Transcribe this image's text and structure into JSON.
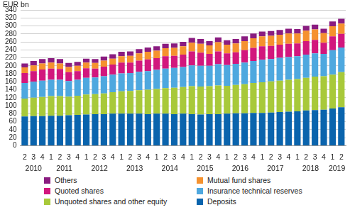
{
  "chart_data": {
    "type": "bar",
    "stacked": true,
    "grid": true,
    "legend": "bottom",
    "y_label": "EUR bn",
    "categories": [
      "2",
      "3",
      "4",
      "1",
      "2",
      "3",
      "4",
      "1",
      "2",
      "3",
      "4",
      "1",
      "2",
      "3",
      "4",
      "1",
      "2",
      "3",
      "4",
      "1",
      "2",
      "3",
      "4",
      "1",
      "2",
      "3",
      "4",
      "1",
      "2",
      "3",
      "4",
      "1",
      "2",
      "3",
      "4",
      "1",
      "2"
    ],
    "years": [
      "2010",
      "2011",
      "2012",
      "2013",
      "2014",
      "2015",
      "2016",
      "2017",
      "2018",
      "2019"
    ],
    "ylim": [
      0,
      340
    ],
    "yticks": [
      0,
      20,
      40,
      60,
      80,
      100,
      120,
      140,
      160,
      180,
      200,
      220,
      240,
      260,
      280,
      300,
      320,
      340
    ],
    "series": [
      {
        "name": "Deposits",
        "color": "#0a64ad",
        "values": [
          73,
          74,
          74,
          75,
          75,
          76,
          77,
          78,
          79,
          79,
          80,
          80,
          80,
          80,
          79,
          80,
          80,
          79,
          80,
          79,
          78,
          79,
          79,
          80,
          81,
          81,
          82,
          82,
          83,
          84,
          85,
          86,
          88,
          89,
          90,
          93,
          96
        ]
      },
      {
        "name": "Unquoted shares and other equity",
        "color": "#a8c93a",
        "values": [
          45,
          46,
          48,
          49,
          49,
          47,
          48,
          50,
          50,
          52,
          54,
          56,
          57,
          59,
          61,
          62,
          64,
          66,
          67,
          70,
          70,
          70,
          72,
          70,
          71,
          73,
          75,
          77,
          78,
          79,
          80,
          81,
          82,
          84,
          84,
          85,
          88
        ]
      },
      {
        "name": "Insurance technical reserves",
        "color": "#4ea8df",
        "values": [
          39,
          40,
          41,
          41,
          41,
          39,
          40,
          42,
          42,
          43,
          44,
          45,
          45,
          46,
          47,
          48,
          49,
          50,
          50,
          52,
          52,
          51,
          53,
          52,
          53,
          54,
          55,
          56,
          56,
          57,
          57,
          57,
          58,
          58,
          56,
          61,
          62
        ]
      },
      {
        "name": "Quoted shares",
        "color": "#d2177d",
        "values": [
          25,
          27,
          28,
          28,
          27,
          22,
          22,
          24,
          22,
          24,
          25,
          27,
          26,
          28,
          29,
          29,
          31,
          30,
          31,
          35,
          33,
          30,
          32,
          29,
          29,
          31,
          33,
          34,
          33,
          33,
          33,
          32,
          34,
          34,
          28,
          35,
          34
        ]
      },
      {
        "name": "Mutual fund shares",
        "color": "#f5922f",
        "values": [
          14,
          14,
          15,
          15,
          14,
          13,
          13,
          14,
          14,
          15,
          15,
          16,
          17,
          18,
          19,
          19,
          20,
          20,
          21,
          22,
          22,
          21,
          23,
          22,
          22,
          23,
          24,
          25,
          25,
          25,
          26,
          25,
          26,
          26,
          24,
          25,
          26
        ]
      },
      {
        "name": "Others",
        "color": "#8a1c80",
        "values": [
          10,
          11,
          11,
          11,
          11,
          10,
          10,
          10,
          10,
          10,
          11,
          11,
          11,
          11,
          11,
          11,
          11,
          11,
          11,
          12,
          12,
          11,
          12,
          11,
          11,
          12,
          12,
          12,
          12,
          12,
          12,
          11,
          12,
          12,
          11,
          12,
          12
        ]
      }
    ]
  }
}
